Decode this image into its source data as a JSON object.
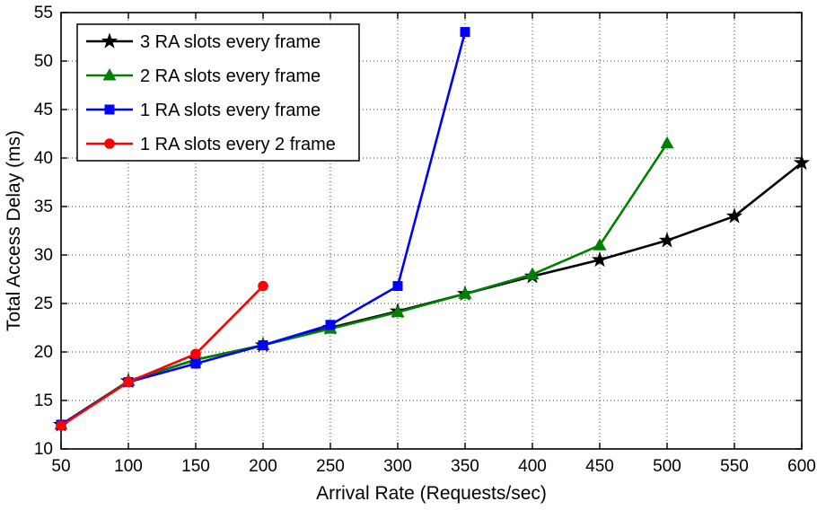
{
  "chart_data": {
    "type": "line",
    "title": "",
    "xlabel": "Arrival Rate (Requests/sec)",
    "ylabel": "Total Access Delay (ms)",
    "xlim": [
      50,
      600
    ],
    "ylim": [
      10,
      55
    ],
    "xticks": [
      50,
      100,
      150,
      200,
      250,
      300,
      350,
      400,
      450,
      500,
      550,
      600
    ],
    "yticks": [
      10,
      15,
      20,
      25,
      30,
      35,
      40,
      45,
      50,
      55
    ],
    "grid": true,
    "legend_position": "top-left",
    "series": [
      {
        "name": "3 RA slots every frame",
        "color": "#000000",
        "marker": "star",
        "x": [
          50,
          100,
          150,
          200,
          250,
          300,
          350,
          400,
          450,
          500,
          550,
          600
        ],
        "y": [
          12.5,
          17.0,
          19.2,
          20.7,
          22.5,
          24.2,
          26.0,
          27.8,
          29.5,
          31.5,
          34.0,
          39.5
        ]
      },
      {
        "name": "2 RA slots every frame",
        "color": "#008000",
        "marker": "triangle",
        "x": [
          50,
          100,
          150,
          200,
          250,
          300,
          350,
          400,
          450,
          500
        ],
        "y": [
          12.5,
          17.0,
          19.2,
          20.7,
          22.4,
          24.1,
          26.0,
          28.0,
          31.0,
          41.5
        ]
      },
      {
        "name": "1 RA slots every frame",
        "color": "#0000FF",
        "marker": "square",
        "x": [
          50,
          100,
          150,
          200,
          250,
          300,
          350
        ],
        "y": [
          12.5,
          16.9,
          18.8,
          20.7,
          22.8,
          26.8,
          53.0
        ]
      },
      {
        "name": "1 RA slots every 2 frame",
        "color": "#FF0000",
        "marker": "circle",
        "x": [
          50,
          100,
          150,
          200
        ],
        "y": [
          12.4,
          16.9,
          19.8,
          26.8
        ]
      }
    ]
  }
}
